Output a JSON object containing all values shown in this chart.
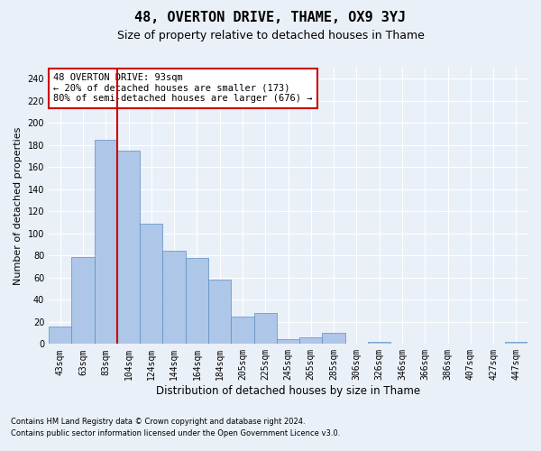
{
  "title": "48, OVERTON DRIVE, THAME, OX9 3YJ",
  "subtitle": "Size of property relative to detached houses in Thame",
  "xlabel": "Distribution of detached houses by size in Thame",
  "ylabel": "Number of detached properties",
  "footnote1": "Contains HM Land Registry data © Crown copyright and database right 2024.",
  "footnote2": "Contains public sector information licensed under the Open Government Licence v3.0.",
  "bar_labels": [
    "43sqm",
    "63sqm",
    "83sqm",
    "104sqm",
    "124sqm",
    "144sqm",
    "164sqm",
    "184sqm",
    "205sqm",
    "225sqm",
    "245sqm",
    "265sqm",
    "285sqm",
    "306sqm",
    "326sqm",
    "346sqm",
    "366sqm",
    "386sqm",
    "407sqm",
    "427sqm",
    "447sqm"
  ],
  "bar_heights": [
    16,
    79,
    185,
    175,
    109,
    84,
    78,
    58,
    25,
    28,
    4,
    6,
    10,
    0,
    2,
    0,
    0,
    0,
    0,
    0,
    2
  ],
  "bar_color": "#aec6e8",
  "bar_edge_color": "#5a8fc0",
  "bar_linewidth": 0.5,
  "vline_x_index": 2,
  "vline_color": "#cc0000",
  "annotation_text": "48 OVERTON DRIVE: 93sqm\n← 20% of detached houses are smaller (173)\n80% of semi-detached houses are larger (676) →",
  "annotation_box_color": "#ffffff",
  "annotation_edge_color": "#cc0000",
  "ylim": [
    0,
    250
  ],
  "yticks": [
    0,
    20,
    40,
    60,
    80,
    100,
    120,
    140,
    160,
    180,
    200,
    220,
    240
  ],
  "background_color": "#eaf0f8",
  "grid_color": "#ffffff",
  "title_fontsize": 11,
  "subtitle_fontsize": 9,
  "axis_fontsize": 8.5,
  "tick_fontsize": 7,
  "ylabel_fontsize": 8
}
